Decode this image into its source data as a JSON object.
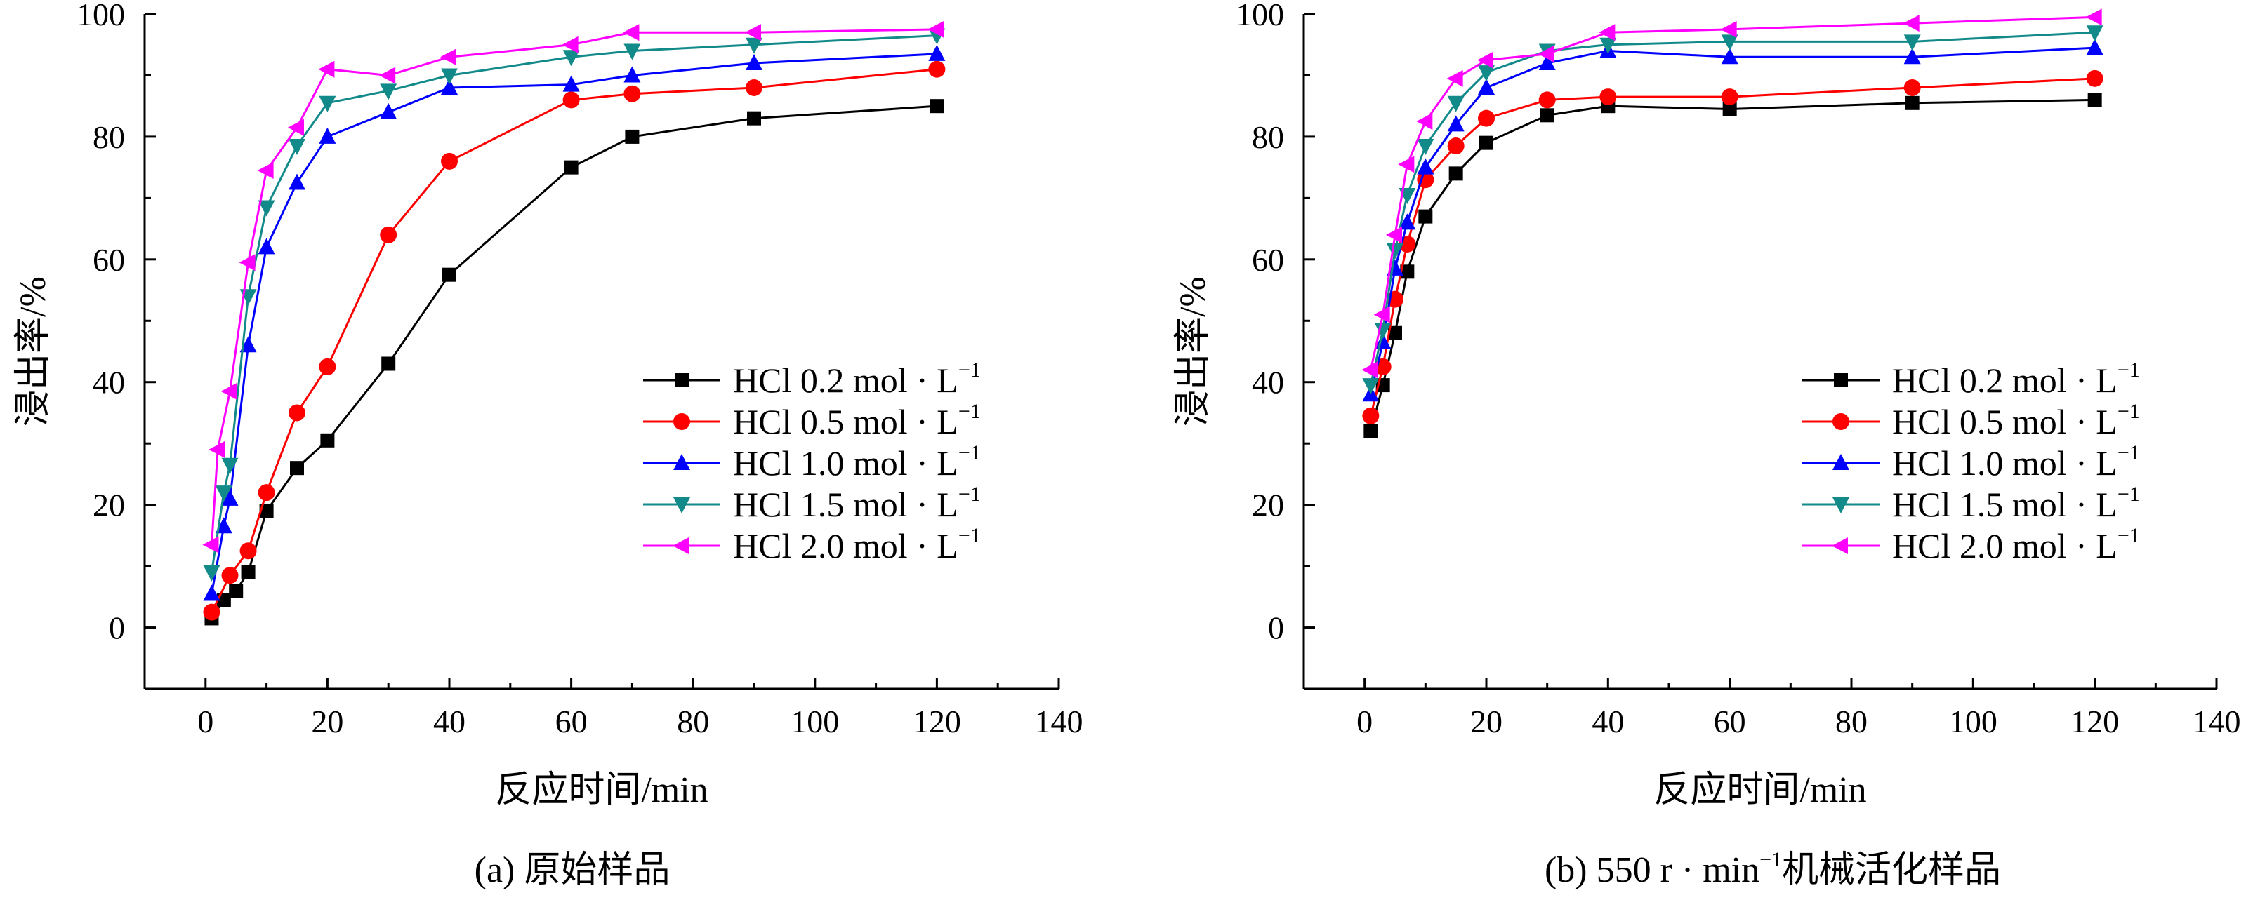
{
  "chart_data": [
    {
      "type": "line",
      "caption": "(a) 原始样品",
      "xlabel": "反应时间/min",
      "ylabel": "浸出率/%",
      "xlim": [
        -10,
        140
      ],
      "ylim": [
        -10,
        100
      ],
      "xticks": [
        0,
        20,
        40,
        60,
        80,
        100,
        120,
        140
      ],
      "yticks": [
        0,
        20,
        40,
        60,
        80,
        100
      ],
      "legend": "center-right",
      "series": [
        {
          "name": "HCl 0.2 mol · L",
          "sup": "−1",
          "color": "#000000",
          "marker": "square",
          "x": [
            1,
            3,
            5,
            7,
            10,
            15,
            20,
            30,
            40,
            60,
            70,
            90,
            120
          ],
          "y": [
            1.5,
            4.5,
            6.0,
            9.0,
            19.0,
            26.0,
            30.5,
            43.0,
            57.5,
            75.0,
            80.0,
            83.0,
            85.0
          ]
        },
        {
          "name": "HCl 0.5 mol · L",
          "sup": "−1",
          "color": "#ff0000",
          "marker": "circle",
          "x": [
            1,
            4,
            7,
            10,
            15,
            20,
            30,
            40,
            60,
            70,
            90,
            120
          ],
          "y": [
            2.5,
            8.5,
            12.5,
            22.0,
            35.0,
            42.5,
            64.0,
            76.0,
            86.0,
            87.0,
            88.0,
            91.0
          ]
        },
        {
          "name": "HCl 1.0 mol · L",
          "sup": "−1",
          "color": "#0000ff",
          "marker": "triangle-up",
          "x": [
            1,
            3,
            4,
            7,
            10,
            15,
            20,
            30,
            40,
            60,
            70,
            90,
            120
          ],
          "y": [
            5.5,
            16.5,
            21.0,
            46.0,
            62.0,
            72.5,
            80.0,
            84.0,
            88.0,
            88.5,
            90.0,
            92.0,
            93.5
          ]
        },
        {
          "name": "HCl 1.5 mol · L",
          "sup": "−1",
          "color": "#138a8a",
          "marker": "triangle-down",
          "x": [
            1,
            3,
            4,
            7,
            10,
            15,
            20,
            30,
            40,
            60,
            70,
            90,
            120
          ],
          "y": [
            9.0,
            22.0,
            26.5,
            54.0,
            68.5,
            78.5,
            85.5,
            87.5,
            90.0,
            93.0,
            94.0,
            95.0,
            96.5
          ]
        },
        {
          "name": "HCl 2.0 mol · L",
          "sup": "−1",
          "color": "#ff00ff",
          "marker": "triangle-left",
          "x": [
            1,
            2,
            4,
            7,
            10,
            15,
            20,
            30,
            40,
            60,
            70,
            90,
            120
          ],
          "y": [
            13.5,
            29.0,
            38.5,
            59.5,
            74.5,
            81.5,
            91.0,
            90.0,
            93.0,
            95.0,
            97.0,
            97.0,
            97.5
          ]
        }
      ]
    },
    {
      "type": "line",
      "caption": "(b) 550 r · min",
      "caption_sup": "−1",
      "caption_tail": "机械活化样品",
      "xlabel": "反应时间/min",
      "ylabel": "浸出率/%",
      "xlim": [
        -10,
        140
      ],
      "ylim": [
        -10,
        100
      ],
      "xticks": [
        0,
        20,
        40,
        60,
        80,
        100,
        120,
        140
      ],
      "yticks": [
        0,
        20,
        40,
        60,
        80,
        100
      ],
      "legend": "center-right",
      "series": [
        {
          "name": "HCl 0.2 mol · L",
          "sup": "−1",
          "color": "#000000",
          "marker": "square",
          "x": [
            1,
            3,
            5,
            7,
            10,
            15,
            20,
            30,
            40,
            60,
            90,
            120
          ],
          "y": [
            32.0,
            39.5,
            48.0,
            58.0,
            67.0,
            74.0,
            79.0,
            83.5,
            85.0,
            84.5,
            85.5,
            86.0
          ]
        },
        {
          "name": "HCl 0.5 mol · L",
          "sup": "−1",
          "color": "#ff0000",
          "marker": "circle",
          "x": [
            1,
            3,
            5,
            7,
            10,
            15,
            20,
            30,
            40,
            60,
            90,
            120
          ],
          "y": [
            34.5,
            42.5,
            53.5,
            62.5,
            73.0,
            78.5,
            83.0,
            86.0,
            86.5,
            86.5,
            88.0,
            89.5
          ]
        },
        {
          "name": "HCl 1.0 mol · L",
          "sup": "−1",
          "color": "#0000ff",
          "marker": "triangle-up",
          "x": [
            1,
            3,
            5,
            7,
            10,
            15,
            20,
            30,
            40,
            60,
            90,
            120
          ],
          "y": [
            38.0,
            46.5,
            58.5,
            66.0,
            75.0,
            82.0,
            88.0,
            92.0,
            94.0,
            93.0,
            93.0,
            94.5
          ]
        },
        {
          "name": "HCl 1.5 mol · L",
          "sup": "−1",
          "color": "#138a8a",
          "marker": "triangle-down",
          "x": [
            1,
            3,
            5,
            7,
            10,
            15,
            20,
            30,
            40,
            60,
            90,
            120
          ],
          "y": [
            39.5,
            48.5,
            61.5,
            70.5,
            78.5,
            85.5,
            90.5,
            94.0,
            95.0,
            95.5,
            95.5,
            97.0
          ]
        },
        {
          "name": "HCl 2.0 mol · L",
          "sup": "−1",
          "color": "#ff00ff",
          "marker": "triangle-left",
          "x": [
            1,
            3,
            5,
            7,
            10,
            15,
            20,
            30,
            40,
            60,
            90,
            120
          ],
          "y": [
            42.0,
            51.0,
            64.0,
            75.5,
            82.5,
            89.5,
            92.5,
            93.5,
            97.0,
            97.5,
            98.5,
            99.5
          ]
        }
      ]
    }
  ]
}
